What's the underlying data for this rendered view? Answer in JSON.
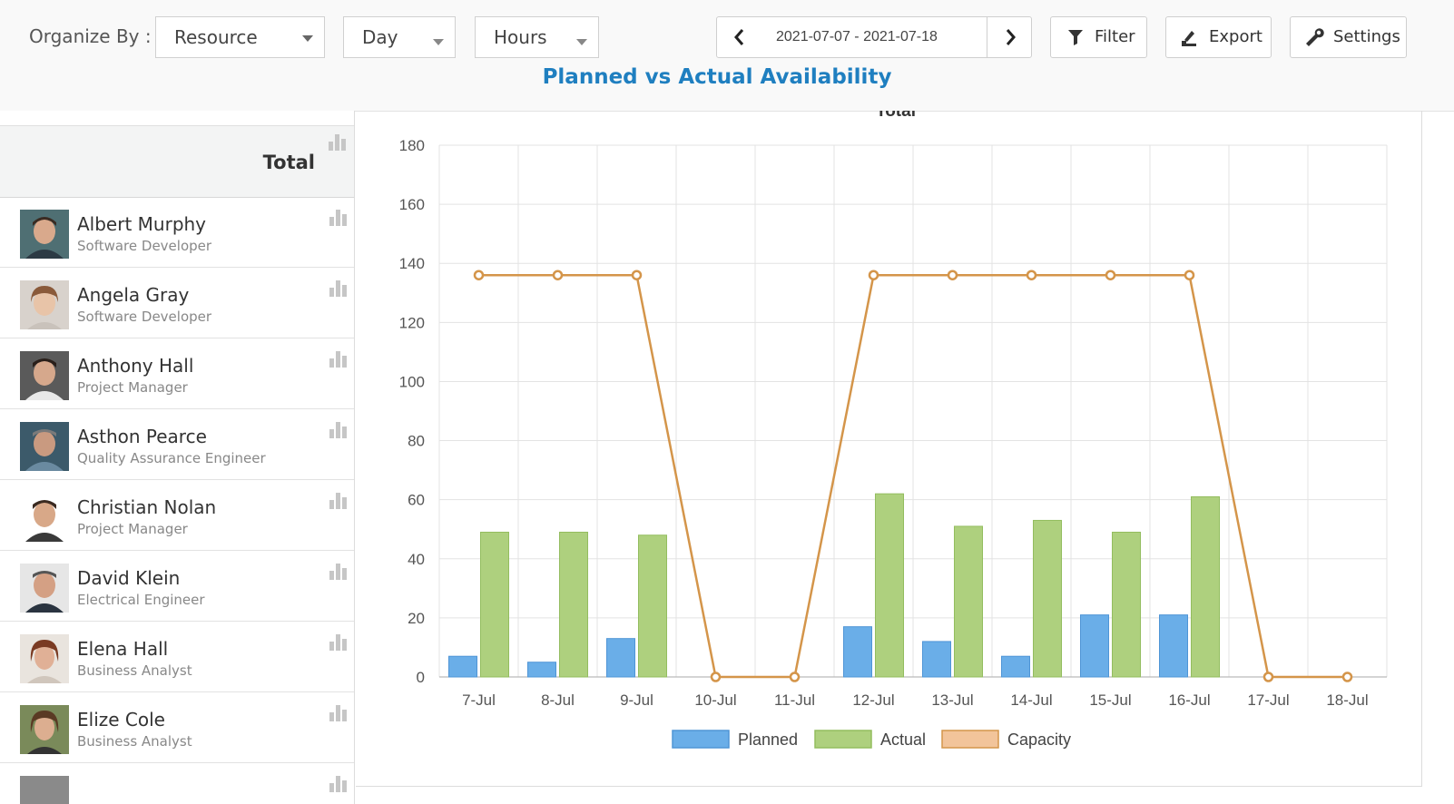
{
  "toolbar": {
    "organize_label": "Organize By :",
    "organize_value": "Resource",
    "period_value": "Day",
    "unit_value": "Hours",
    "date_range": "2021-07-07 - 2021-07-18",
    "filter_label": "Filter",
    "export_label": "Export",
    "settings_label": "Settings"
  },
  "page_title": "Planned vs Actual Availability",
  "total_label": "Total",
  "resources": [
    {
      "name": "Albert Murphy",
      "role": "Software Developer"
    },
    {
      "name": "Angela Gray",
      "role": "Software Developer"
    },
    {
      "name": "Anthony Hall",
      "role": "Project Manager"
    },
    {
      "name": "Asthon Pearce",
      "role": "Quality Assurance Engineer"
    },
    {
      "name": "Christian Nolan",
      "role": "Project Manager"
    },
    {
      "name": "David Klein",
      "role": "Electrical Engineer"
    },
    {
      "name": "Elena Hall",
      "role": "Business Analyst"
    },
    {
      "name": "Elize Cole",
      "role": "Business Analyst"
    }
  ],
  "icons": {
    "prev": "chevron-left-icon",
    "next": "chevron-right-icon",
    "filter": "funnel-icon",
    "export": "export-icon",
    "settings": "wrench-icon",
    "row_chart": "bar-chart-icon"
  },
  "colors": {
    "planned": "#6aaee8",
    "actual": "#aed07e",
    "capacity": "#d4954a",
    "title": "#1f7fc0"
  },
  "chart_data": {
    "type": "bar",
    "title": "Total",
    "categories": [
      "7-Jul",
      "8-Jul",
      "9-Jul",
      "10-Jul",
      "11-Jul",
      "12-Jul",
      "13-Jul",
      "14-Jul",
      "15-Jul",
      "16-Jul",
      "17-Jul",
      "18-Jul"
    ],
    "series": [
      {
        "name": "Planned",
        "type": "bar",
        "values": [
          7,
          5,
          13,
          0,
          0,
          17,
          12,
          7,
          21,
          21,
          0,
          0
        ]
      },
      {
        "name": "Actual",
        "type": "bar",
        "values": [
          49,
          49,
          48,
          0,
          0,
          62,
          51,
          53,
          49,
          61,
          0,
          0
        ]
      },
      {
        "name": "Capacity",
        "type": "line",
        "values": [
          136,
          136,
          136,
          0,
          0,
          136,
          136,
          136,
          136,
          136,
          0,
          0
        ]
      }
    ],
    "ylim": [
      0,
      180
    ],
    "yticks": [
      0,
      20,
      40,
      60,
      80,
      100,
      120,
      140,
      160,
      180
    ],
    "grid": true,
    "legend": "bottom-center"
  }
}
